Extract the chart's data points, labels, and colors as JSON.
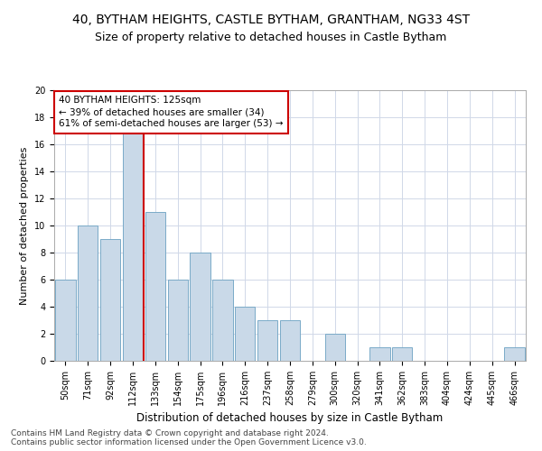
{
  "title1": "40, BYTHAM HEIGHTS, CASTLE BYTHAM, GRANTHAM, NG33 4ST",
  "title2": "Size of property relative to detached houses in Castle Bytham",
  "xlabel": "Distribution of detached houses by size in Castle Bytham",
  "ylabel": "Number of detached properties",
  "categories": [
    "50sqm",
    "71sqm",
    "92sqm",
    "112sqm",
    "133sqm",
    "154sqm",
    "175sqm",
    "196sqm",
    "216sqm",
    "237sqm",
    "258sqm",
    "279sqm",
    "300sqm",
    "320sqm",
    "341sqm",
    "362sqm",
    "383sqm",
    "404sqm",
    "424sqm",
    "445sqm",
    "466sqm"
  ],
  "values": [
    6,
    10,
    9,
    17,
    11,
    6,
    8,
    6,
    4,
    3,
    3,
    0,
    2,
    0,
    1,
    1,
    0,
    0,
    0,
    0,
    1
  ],
  "bar_color": "#c9d9e8",
  "bar_edge_color": "#7aaac8",
  "marker_label": "40 BYTHAM HEIGHTS: 125sqm",
  "annotation_line1": "← 39% of detached houses are smaller (34)",
  "annotation_line2": "61% of semi-detached houses are larger (53) →",
  "annotation_box_color": "#cc0000",
  "vline_color": "#cc0000",
  "vline_x_index": 3.5,
  "ymax": 20,
  "yticks": [
    0,
    2,
    4,
    6,
    8,
    10,
    12,
    14,
    16,
    18,
    20
  ],
  "grid_color": "#d0d8e8",
  "footer1": "Contains HM Land Registry data © Crown copyright and database right 2024.",
  "footer2": "Contains public sector information licensed under the Open Government Licence v3.0.",
  "title1_fontsize": 10,
  "title2_fontsize": 9,
  "xlabel_fontsize": 8.5,
  "ylabel_fontsize": 8,
  "tick_fontsize": 7,
  "footer_fontsize": 6.5,
  "annotation_fontsize": 7.5
}
